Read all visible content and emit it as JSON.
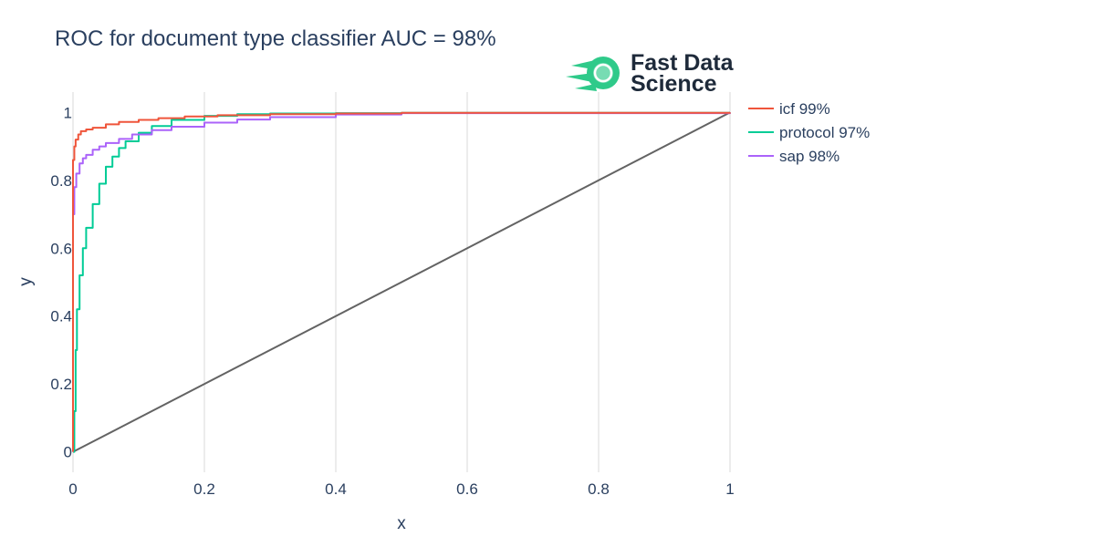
{
  "chart_data": {
    "type": "line",
    "title": "ROC for document type classifier AUC = 98%",
    "xlabel": "x",
    "ylabel": "y",
    "xlim": [
      0,
      1
    ],
    "ylim": [
      -0.06,
      1.06
    ],
    "xticks": [
      "0",
      "0.2",
      "0.4",
      "0.6",
      "0.8",
      "1"
    ],
    "xtick_values": [
      0,
      0.2,
      0.4,
      0.6,
      0.8,
      1
    ],
    "yticks": [
      "0",
      "0.2",
      "0.4",
      "0.6",
      "0.8",
      "1"
    ],
    "ytick_values": [
      0,
      0.2,
      0.4,
      0.6,
      0.8,
      1
    ],
    "grid": "vertical",
    "legend_position": "right",
    "series": [
      {
        "name": "icf 99%",
        "color": "#EF553B",
        "x": [
          0,
          0,
          0.002,
          0.004,
          0.008,
          0.012,
          0.02,
          0.03,
          0.05,
          0.07,
          0.1,
          0.13,
          0.17,
          0.22,
          0.3,
          0.4,
          0.5,
          1.0
        ],
        "y": [
          0,
          0.86,
          0.9,
          0.92,
          0.935,
          0.945,
          0.95,
          0.955,
          0.965,
          0.972,
          0.978,
          0.983,
          0.988,
          0.992,
          0.995,
          0.997,
          0.999,
          1.0
        ]
      },
      {
        "name": "protocol 97%",
        "color": "#00CC96",
        "x": [
          0,
          0.002,
          0.004,
          0.006,
          0.01,
          0.015,
          0.02,
          0.03,
          0.04,
          0.05,
          0.06,
          0.07,
          0.08,
          0.1,
          0.12,
          0.15,
          0.2,
          0.25,
          0.3,
          0.4,
          0.5,
          1.0
        ],
        "y": [
          0,
          0.12,
          0.3,
          0.42,
          0.52,
          0.6,
          0.66,
          0.73,
          0.79,
          0.84,
          0.87,
          0.895,
          0.915,
          0.94,
          0.96,
          0.978,
          0.99,
          0.995,
          0.997,
          0.998,
          0.999,
          1.0
        ]
      },
      {
        "name": "sap 98%",
        "color": "#AB63FA",
        "x": [
          0,
          0,
          0.002,
          0.005,
          0.01,
          0.015,
          0.02,
          0.03,
          0.04,
          0.05,
          0.07,
          0.09,
          0.12,
          0.15,
          0.2,
          0.25,
          0.3,
          0.4,
          0.5,
          1.0
        ],
        "y": [
          0,
          0.7,
          0.78,
          0.82,
          0.85,
          0.865,
          0.875,
          0.89,
          0.9,
          0.91,
          0.922,
          0.935,
          0.948,
          0.958,
          0.97,
          0.979,
          0.986,
          0.994,
          0.998,
          1.0
        ]
      },
      {
        "color": "#636363",
        "x": [
          0,
          1
        ],
        "y": [
          0,
          1
        ]
      }
    ]
  },
  "logo": {
    "line1": "Fast Data",
    "line2": "Science",
    "colors": {
      "green": "#2fca8a",
      "text": "#1e2a3a"
    }
  }
}
